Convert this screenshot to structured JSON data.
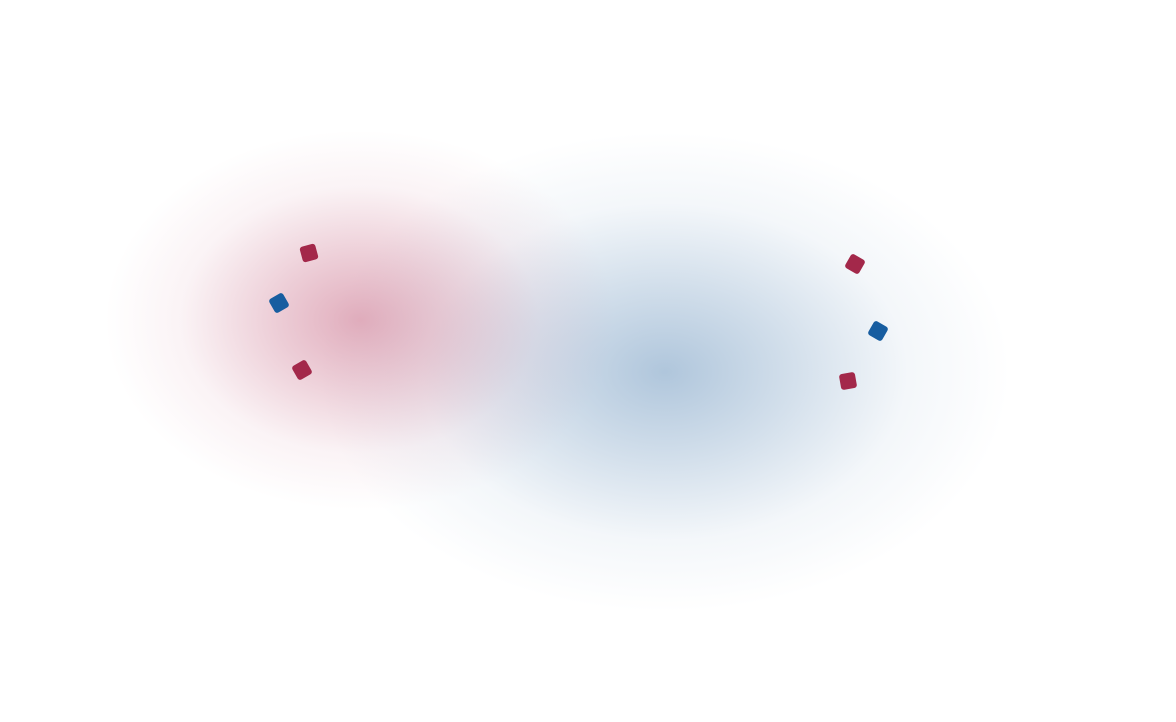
{
  "colors": {
    "background": "#ffffff",
    "red": "#a3284a",
    "blue": "#175da0",
    "red_glow": "#c86a86",
    "blue_glow": "#7fa3c6"
  },
  "glows": [
    {
      "name": "red-glow",
      "color": "red_glow",
      "strength": 0.55
    },
    {
      "name": "blue-glow",
      "color": "blue_glow",
      "strength": 0.62
    }
  ],
  "markers": [
    {
      "name": "marker-red-1",
      "color": "red"
    },
    {
      "name": "marker-blue-1",
      "color": "blue"
    },
    {
      "name": "marker-red-2",
      "color": "red"
    },
    {
      "name": "marker-red-3",
      "color": "red"
    },
    {
      "name": "marker-blue-2",
      "color": "blue"
    },
    {
      "name": "marker-red-4",
      "color": "red"
    }
  ]
}
